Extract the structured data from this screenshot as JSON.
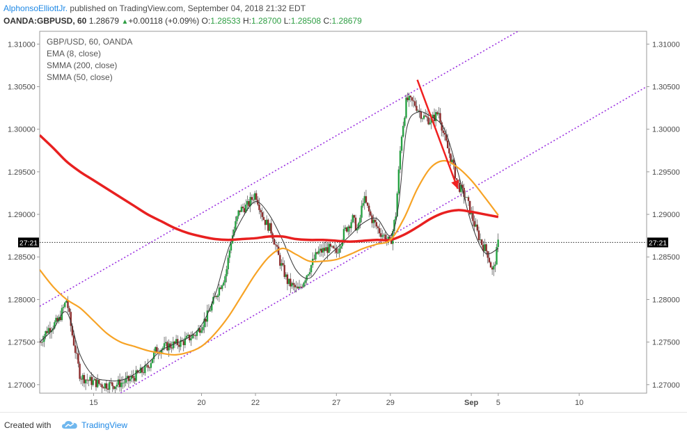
{
  "header": {
    "author": "AlphonsoElliottJr.",
    "published": " published on TradingView.com, September 04, 2018 21:32 EDT",
    "symbol": "OANDA:GBPUSD, 60",
    "last": "1.28679",
    "change": "+0.00118 (+0.09%)",
    "o_label": "O:",
    "o": "1.28533",
    "h_label": "H:",
    "h": "1.28700",
    "l_label": "L:",
    "l": "1.28508",
    "c_label": "C:",
    "c": "1.28679"
  },
  "legend": {
    "title": "GBP/USD, 60, OANDA",
    "ema": "EMA (8, close)",
    "smma200": "SMMA (200, close)",
    "smma50": "SMMA (50, close)"
  },
  "footer": {
    "created": "Created with",
    "brand": "TradingView",
    "logo_icon": "tradingview-cloud-icon"
  },
  "colors": {
    "candle_up": "#26a142",
    "candle_down": "#8b2b2b",
    "ema8": "#333333",
    "smma200": "#e82020",
    "smma50": "#f7a325",
    "channel": "#9b30e0",
    "arrow": "#f02020",
    "brand": "#1e88e5"
  },
  "chart_data": {
    "type": "line",
    "timeframe": "60",
    "x_tick_labels": [
      "15",
      "20",
      "22",
      "27",
      "29",
      "Sep",
      "5",
      "10"
    ],
    "y_tick_labels": [
      "1.31000",
      "1.30500",
      "1.30000",
      "1.29500",
      "1.29000",
      "1.28500",
      "1.28000",
      "1.27500",
      "1.27000"
    ],
    "ylim": [
      1.269,
      1.3115
    ],
    "current_price_marker": "27:21",
    "current_price": 1.2867,
    "x_positions": {
      "15": 0,
      "20": 4,
      "22": 6,
      "27": 9,
      "29": 11,
      "Sep": 14,
      "5": 15,
      "10": 18
    },
    "xlim": [
      -2.0,
      20.5
    ],
    "price_close": {
      "x": [
        -2.0,
        -1.7,
        -1.3,
        -1.0,
        -0.8,
        -0.5,
        -0.2,
        0.3,
        0.8,
        1.3,
        2.0,
        2.3,
        2.7,
        3.3,
        3.8,
        4.2,
        4.6,
        4.9,
        5.1,
        5.4,
        5.7,
        6.0,
        6.3,
        6.6,
        6.9,
        7.2,
        7.6,
        7.9,
        8.3,
        8.7,
        9.0,
        9.3,
        9.6,
        9.8,
        10.0,
        10.3,
        10.6,
        10.9,
        11.0,
        11.2,
        11.4,
        11.6,
        11.9,
        12.2,
        12.5,
        12.8,
        13.0,
        13.3,
        13.5,
        13.8,
        14.0,
        14.2,
        14.4,
        14.6,
        14.8,
        15.0
      ],
      "y": [
        1.275,
        1.2765,
        1.2775,
        1.28,
        1.276,
        1.271,
        1.2705,
        1.27,
        1.27,
        1.2705,
        1.272,
        1.274,
        1.2745,
        1.275,
        1.276,
        1.278,
        1.281,
        1.283,
        1.287,
        1.2905,
        1.291,
        1.2925,
        1.2895,
        1.288,
        1.2845,
        1.282,
        1.281,
        1.283,
        1.2855,
        1.286,
        1.2855,
        1.288,
        1.2895,
        1.288,
        1.292,
        1.2895,
        1.288,
        1.287,
        1.2865,
        1.29,
        1.299,
        1.3035,
        1.303,
        1.3015,
        1.301,
        1.302,
        1.299,
        1.296,
        1.2935,
        1.292,
        1.29,
        1.288,
        1.2865,
        1.2855,
        1.283,
        1.2867
      ]
    },
    "series": [
      {
        "name": "EMA (8, close)",
        "x": [
          -2.0,
          -1.5,
          -1.0,
          -0.5,
          0.0,
          0.5,
          1.0,
          1.5,
          2.0,
          2.5,
          3.0,
          3.5,
          4.0,
          4.5,
          5.0,
          5.5,
          6.0,
          6.5,
          7.0,
          7.5,
          8.0,
          8.5,
          9.0,
          9.5,
          10.0,
          10.5,
          11.0,
          11.3,
          11.6,
          12.0,
          12.5,
          13.0,
          13.5,
          14.0,
          14.5,
          15.0
        ],
        "values": [
          1.275,
          1.2765,
          1.2785,
          1.2735,
          1.271,
          1.2705,
          1.2705,
          1.2712,
          1.2725,
          1.274,
          1.2748,
          1.2755,
          1.277,
          1.2805,
          1.286,
          1.2895,
          1.2915,
          1.29,
          1.287,
          1.2835,
          1.2825,
          1.2845,
          1.286,
          1.2875,
          1.289,
          1.2895,
          1.2875,
          1.291,
          1.3,
          1.302,
          1.3015,
          1.3,
          1.295,
          1.289,
          1.2855,
          1.286
        ]
      },
      {
        "name": "SMMA (200, close)",
        "x": [
          -2.0,
          -1.5,
          -1.0,
          -0.5,
          0.0,
          0.5,
          1.0,
          1.5,
          2.0,
          2.5,
          3.0,
          3.5,
          4.0,
          4.5,
          5.0,
          5.5,
          6.0,
          6.5,
          7.0,
          7.5,
          8.0,
          8.5,
          9.0,
          9.5,
          10.0,
          10.5,
          11.0,
          11.5,
          12.0,
          12.5,
          13.0,
          13.5,
          14.0,
          14.5,
          15.0
        ],
        "values": [
          1.2993,
          1.2978,
          1.2962,
          1.295,
          1.294,
          1.293,
          1.292,
          1.291,
          1.29,
          1.2892,
          1.2884,
          1.2878,
          1.2874,
          1.2871,
          1.287,
          1.2871,
          1.2872,
          1.2874,
          1.2874,
          1.2871,
          1.287,
          1.287,
          1.2869,
          1.2868,
          1.2869,
          1.287,
          1.287,
          1.2876,
          1.2885,
          1.2895,
          1.2902,
          1.2905,
          1.2903,
          1.29,
          1.2897
        ]
      },
      {
        "name": "SMMA (50, close)",
        "x": [
          -2.0,
          -1.5,
          -1.0,
          -0.5,
          0.0,
          0.5,
          1.0,
          1.5,
          2.0,
          2.5,
          3.0,
          3.5,
          4.0,
          4.5,
          5.0,
          5.5,
          6.0,
          6.5,
          7.0,
          7.5,
          8.0,
          8.5,
          9.0,
          9.5,
          10.0,
          10.5,
          11.0,
          11.5,
          12.0,
          12.5,
          13.0,
          13.5,
          14.0,
          14.5,
          15.0
        ],
        "values": [
          1.2835,
          1.2815,
          1.28,
          1.279,
          1.2775,
          1.276,
          1.275,
          1.2745,
          1.274,
          1.2737,
          1.2735,
          1.2738,
          1.2745,
          1.276,
          1.278,
          1.2805,
          1.283,
          1.285,
          1.286,
          1.2853,
          1.2845,
          1.2845,
          1.2847,
          1.2853,
          1.286,
          1.2865,
          1.287,
          1.2895,
          1.293,
          1.2955,
          1.2963,
          1.2955,
          1.294,
          1.292,
          1.2899
        ]
      }
    ],
    "channel_lines": [
      {
        "x": [
          -2.0,
          16.0
        ],
        "y": [
          1.2792,
          1.312
        ]
      },
      {
        "x": [
          1.0,
          20.5
        ],
        "y": [
          1.269,
          1.305
        ]
      }
    ],
    "annotation_arrow": {
      "x": [
        12.0,
        13.5
      ],
      "y": [
        1.3058,
        1.293
      ]
    },
    "grid": false,
    "legend_position": "top-left"
  }
}
